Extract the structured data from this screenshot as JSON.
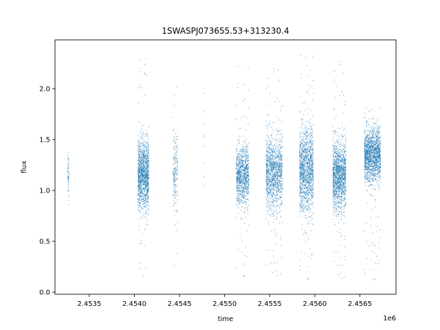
{
  "chart_data": {
    "type": "scatter",
    "title": "1SWASPJ073655.53+313230.4",
    "xlabel": "time",
    "ylabel": "flux",
    "x_offset_label": "1e6",
    "xlim": [
      2453120,
      2456900
    ],
    "ylim": [
      -0.02,
      2.48
    ],
    "x_ticks": [
      2453500,
      2454000,
      2454500,
      2455000,
      2455500,
      2456000,
      2456500
    ],
    "x_tick_labels": [
      "2.4535",
      "2.4540",
      "2.4545",
      "2.4550",
      "2.4555",
      "2.4560",
      "2.4565"
    ],
    "y_ticks": [
      0.0,
      0.5,
      1.0,
      1.5,
      2.0
    ],
    "y_tick_labels": [
      "0.0",
      "0.5",
      "1.0",
      "1.5",
      "2.0"
    ],
    "grid": false,
    "marker_color": "#1f77b4",
    "series": [
      {
        "points_summary": "dense clusters of flux measurements by observing season",
        "clusters": [
          {
            "x_start": 2453260,
            "x_end": 2453275,
            "n": 60,
            "center": 1.15,
            "spread": 0.11,
            "min": 0.67,
            "max": 1.53
          },
          {
            "x_start": 2454040,
            "x_end": 2454160,
            "n": 1300,
            "center": 1.15,
            "spread": 0.17,
            "min": 0.15,
            "max": 2.35
          },
          {
            "x_start": 2454430,
            "x_end": 2454480,
            "n": 200,
            "center": 1.15,
            "spread": 0.2,
            "min": 0.13,
            "max": 2.2
          },
          {
            "x_start": 2454770,
            "x_end": 2454775,
            "n": 10,
            "center": 1.3,
            "spread": 0.25,
            "min": 0.54,
            "max": 2.0
          },
          {
            "x_start": 2455130,
            "x_end": 2455270,
            "n": 1000,
            "center": 1.15,
            "spread": 0.14,
            "min": 0.13,
            "max": 2.27
          },
          {
            "x_start": 2455460,
            "x_end": 2455640,
            "n": 1300,
            "center": 1.18,
            "spread": 0.18,
            "min": 0.13,
            "max": 2.22
          },
          {
            "x_start": 2455830,
            "x_end": 2455985,
            "n": 1400,
            "center": 1.2,
            "spread": 0.2,
            "min": 0.1,
            "max": 2.38
          },
          {
            "x_start": 2456200,
            "x_end": 2456345,
            "n": 1400,
            "center": 1.15,
            "spread": 0.17,
            "min": 0.1,
            "max": 2.3
          },
          {
            "x_start": 2456550,
            "x_end": 2456730,
            "n": 1600,
            "center": 1.35,
            "spread": 0.13,
            "min": 0.1,
            "max": 1.85
          }
        ]
      }
    ]
  }
}
